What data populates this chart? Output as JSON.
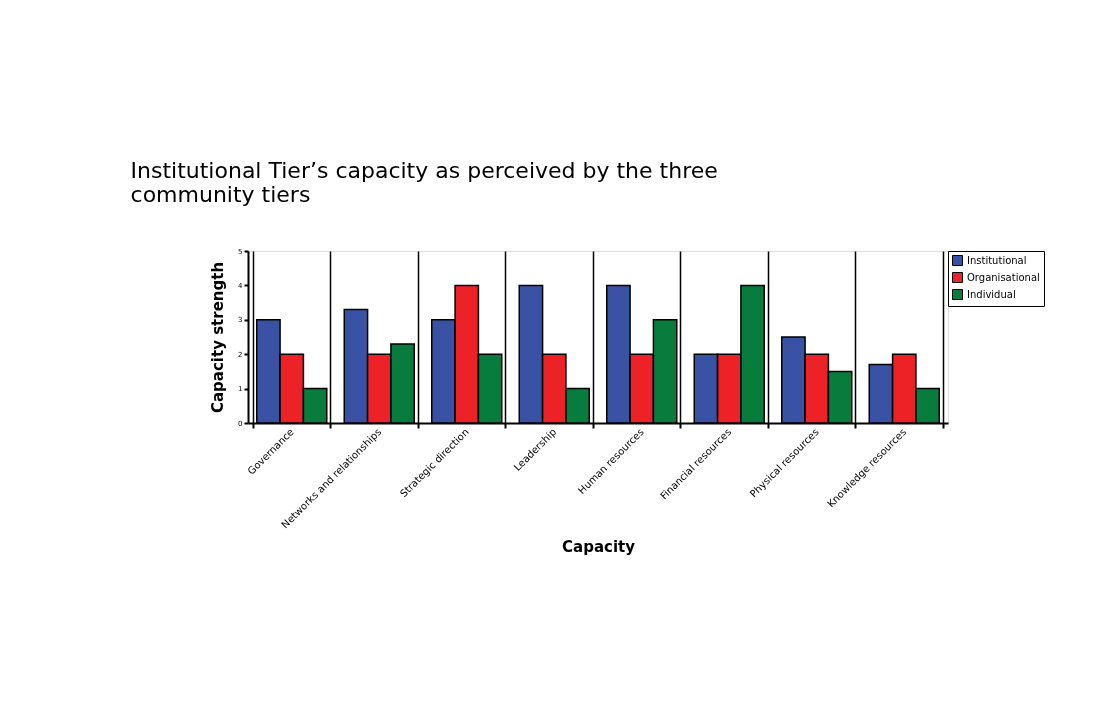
{
  "chart_data": {
    "type": "bar",
    "title": [
      "Institutional Tier’s capacity as perceived by the three",
      "community tiers"
    ],
    "xlabel": "Capacity",
    "ylabel": "Capacity strength",
    "categories": [
      "Governance",
      "Networks and relationships",
      "Strategic direction",
      "Leadership",
      "Human resources",
      "Financial resources",
      "Physical resources",
      "Knowledge resources"
    ],
    "series": [
      {
        "name": "Institutional",
        "color": "#3a52a3",
        "values": [
          3,
          3.3,
          3,
          4,
          4,
          2,
          2.5,
          1.7
        ]
      },
      {
        "name": "Organisational",
        "color": "#ec2227",
        "values": [
          2,
          2,
          4,
          2,
          2,
          2,
          2,
          2
        ]
      },
      {
        "name": "Individual",
        "color": "#077c3c",
        "values": [
          1,
          2.3,
          2,
          1,
          3,
          4,
          1.5,
          1
        ]
      }
    ],
    "ylim": [
      0,
      5
    ],
    "yticks": [
      0,
      1,
      2,
      3,
      4,
      5
    ],
    "grid": "x",
    "legend": "top right"
  }
}
